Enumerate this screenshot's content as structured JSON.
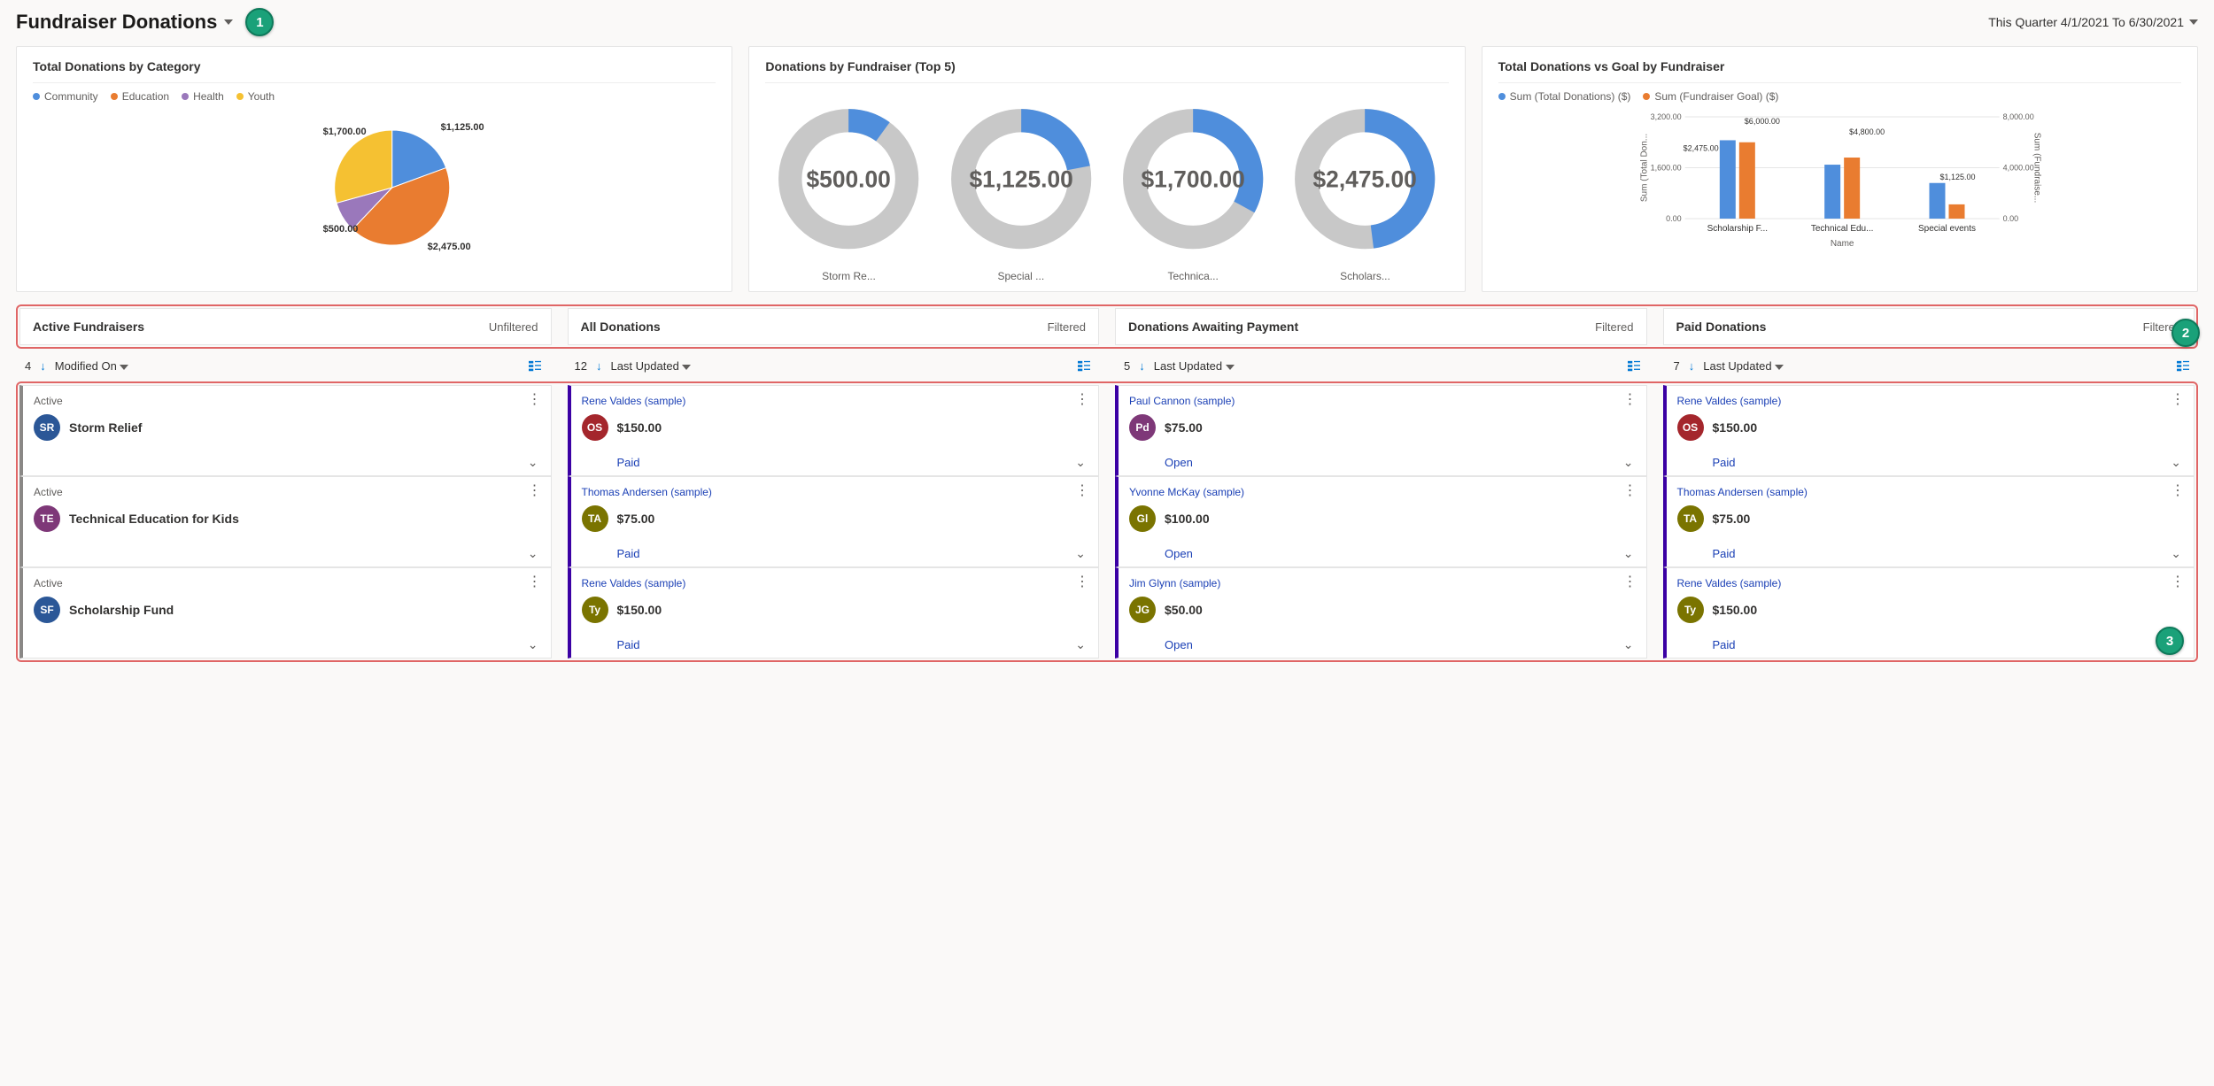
{
  "header": {
    "title": "Fundraiser Donations",
    "date_range": "This Quarter 4/1/2021 To 6/30/2021"
  },
  "callouts": [
    "1",
    "2",
    "3"
  ],
  "colors": {
    "blue": "#4f8edc",
    "orange": "#e97c30",
    "purple": "#9a78bb",
    "yellow": "#f5c132",
    "gray_ring": "#c8c8c8",
    "accent_purple": "#3b01a4",
    "link": "#1a3fb5"
  },
  "chart1": {
    "title": "Total Donations by Category",
    "legend": [
      {
        "label": "Community",
        "color": "#4f8edc"
      },
      {
        "label": "Education",
        "color": "#e97c30"
      },
      {
        "label": "Health",
        "color": "#9a78bb"
      },
      {
        "label": "Youth",
        "color": "#f5c132"
      }
    ],
    "slices": [
      {
        "label": "$1,125.00",
        "value": 1125,
        "color": "#4f8edc"
      },
      {
        "label": "$2,475.00",
        "value": 2475,
        "color": "#e97c30"
      },
      {
        "label": "$500.00",
        "value": 500,
        "color": "#9a78bb"
      },
      {
        "label": "$1,700.00",
        "value": 1700,
        "color": "#f5c132"
      }
    ]
  },
  "chart2": {
    "title": "Donations by Fundraiser (Top 5)",
    "donuts": [
      {
        "label": "Storm Re...",
        "center": "$500.00",
        "pct": 0.1
      },
      {
        "label": "Special ...",
        "center": "$1,125.00",
        "pct": 0.22
      },
      {
        "label": "Technica...",
        "center": "$1,700.00",
        "pct": 0.33
      },
      {
        "label": "Scholars...",
        "center": "$2,475.00",
        "pct": 0.48
      }
    ],
    "ring_fg": "#4f8edc",
    "ring_bg": "#c8c8c8"
  },
  "chart3": {
    "title": "Total Donations vs Goal by Fundraiser",
    "legend": [
      {
        "label": "Sum (Total Donations) ($)",
        "color": "#4f8edc"
      },
      {
        "label": "Sum (Fundraiser Goal) ($)",
        "color": "#e97c30"
      }
    ],
    "y_left_label": "Sum (Total Don...",
    "y_right_label": "Sum (Fundraise...",
    "x_label": "Name",
    "y_left_ticks": [
      "0.00",
      "1,600.00",
      "3,200.00"
    ],
    "y_right_ticks": [
      "0.00",
      "4,000.00",
      "8,000.00"
    ],
    "categories": [
      "Scholarship F...",
      "Technical Edu...",
      "Special events"
    ],
    "value_labels": [
      "$2,475.00",
      "$6,000.00",
      "$4,800.00",
      "$1,125.00"
    ],
    "bars": [
      {
        "name": "Scholarship F...",
        "donations": 2475,
        "goal": 6000,
        "don_h": 0.77,
        "goal_h": 0.75
      },
      {
        "name": "Technical Edu...",
        "donations": 1700,
        "goal": 4800,
        "don_h": 0.53,
        "goal_h": 0.6
      },
      {
        "name": "Special events",
        "donations": 1125,
        "goal": 1125,
        "don_h": 0.35,
        "goal_h": 0.14
      }
    ]
  },
  "lanes": [
    {
      "title": "Active Fundraisers",
      "filter": "Unfiltered",
      "count": "4",
      "sort": "Modified On",
      "accent": "gray-accent",
      "cards": [
        {
          "top": "Active",
          "avatar": "SR",
          "av_color": "#2b5797",
          "title": "Storm Relief"
        },
        {
          "top": "Active",
          "avatar": "TE",
          "av_color": "#7e3878",
          "title": "Technical Education for Kids"
        },
        {
          "top": "Active",
          "avatar": "SF",
          "av_color": "#2b5797",
          "title": "Scholarship Fund"
        }
      ]
    },
    {
      "title": "All Donations",
      "filter": "Filtered",
      "count": "12",
      "sort": "Last Updated",
      "accent": "blue-accent",
      "cards": [
        {
          "link": "Rene Valdes (sample)",
          "avatar": "OS",
          "av_color": "#a4262c",
          "amount": "$150.00",
          "status": "Paid"
        },
        {
          "link": "Thomas Andersen (sample)",
          "avatar": "TA",
          "av_color": "#7a7400",
          "amount": "$75.00",
          "status": "Paid"
        },
        {
          "link": "Rene Valdes (sample)",
          "avatar": "Ty",
          "av_color": "#7a7400",
          "amount": "$150.00",
          "status": "Paid"
        }
      ]
    },
    {
      "title": "Donations Awaiting Payment",
      "filter": "Filtered",
      "count": "5",
      "sort": "Last Updated",
      "accent": "blue-accent",
      "cards": [
        {
          "link": "Paul Cannon (sample)",
          "avatar": "Pd",
          "av_color": "#7e3878",
          "amount": "$75.00",
          "status": "Open"
        },
        {
          "link": "Yvonne McKay (sample)",
          "avatar": "Gl",
          "av_color": "#7a7400",
          "amount": "$100.00",
          "status": "Open"
        },
        {
          "link": "Jim Glynn (sample)",
          "avatar": "JG",
          "av_color": "#7a7400",
          "amount": "$50.00",
          "status": "Open"
        }
      ]
    },
    {
      "title": "Paid Donations",
      "filter": "Filtered",
      "count": "7",
      "sort": "Last Updated",
      "accent": "blue-accent",
      "cards": [
        {
          "link": "Rene Valdes (sample)",
          "avatar": "OS",
          "av_color": "#a4262c",
          "amount": "$150.00",
          "status": "Paid"
        },
        {
          "link": "Thomas Andersen (sample)",
          "avatar": "TA",
          "av_color": "#7a7400",
          "amount": "$75.00",
          "status": "Paid"
        },
        {
          "link": "Rene Valdes (sample)",
          "avatar": "Ty",
          "av_color": "#7a7400",
          "amount": "$150.00",
          "status": "Paid"
        }
      ]
    }
  ]
}
